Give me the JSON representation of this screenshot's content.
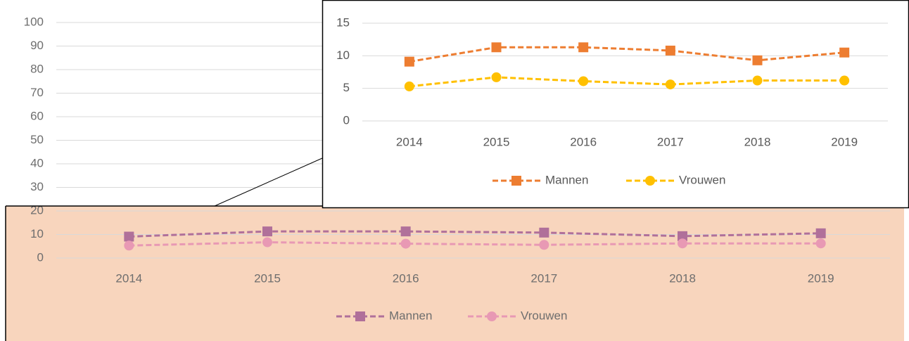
{
  "chart_data": [
    {
      "type": "line",
      "categories": [
        "2014",
        "2015",
        "2016",
        "2017",
        "2018",
        "2019"
      ],
      "series": [
        {
          "name": "Mannen",
          "color": "#b0709a",
          "marker": "square",
          "values": [
            9.1,
            11.3,
            11.3,
            10.8,
            9.3,
            10.5
          ]
        },
        {
          "name": "Vrouwen",
          "color": "#e899b4",
          "marker": "circle",
          "values": [
            5.3,
            6.7,
            6.1,
            5.6,
            6.2,
            6.2
          ]
        }
      ],
      "ylim": [
        0,
        100
      ],
      "yticks": [
        0,
        10,
        20,
        30,
        40,
        50,
        60,
        70,
        80,
        90,
        100
      ],
      "grid": true,
      "legend": "bottom"
    },
    {
      "type": "line",
      "categories": [
        "2014",
        "2015",
        "2016",
        "2017",
        "2018",
        "2019"
      ],
      "series": [
        {
          "name": "Mannen",
          "color": "#ed7d31",
          "marker": "square",
          "values": [
            9.1,
            11.3,
            11.3,
            10.8,
            9.3,
            10.5
          ]
        },
        {
          "name": "Vrouwen",
          "color": "#ffc000",
          "marker": "circle",
          "values": [
            5.3,
            6.7,
            6.1,
            5.6,
            6.2,
            6.2
          ]
        }
      ],
      "ylim": [
        0,
        15
      ],
      "yticks": [
        0,
        5,
        10,
        15
      ],
      "grid": true,
      "legend": "bottom"
    }
  ]
}
